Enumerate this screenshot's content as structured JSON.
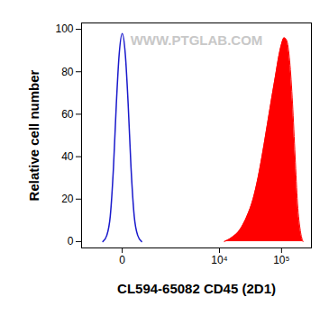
{
  "chart_data": {
    "type": "histogram",
    "x_label": "CL594-65082 CD45 (2D1)",
    "y_label": "Relative cell number",
    "annotations": [
      {
        "text": "WWW.PTGLAB.COM"
      }
    ],
    "log": "x",
    "xlim": [
      -1000,
      300000
    ],
    "xticks": [
      0,
      {
        "value": 10000,
        "label": "10⁴"
      },
      {
        "value": 100000,
        "label": "10⁵"
      }
    ],
    "ylim": [
      -3,
      103
    ],
    "yticks": [
      0,
      20,
      40,
      60,
      80,
      100
    ],
    "series": [
      {
        "type": "line",
        "color": "#1a1acc",
        "x": [
          -300,
          -220,
          -160,
          -110,
          -70,
          -35,
          0,
          35,
          70,
          110,
          160,
          220,
          300
        ],
        "values": [
          0,
          3,
          12,
          35,
          65,
          88,
          98,
          88,
          65,
          35,
          12,
          3,
          0
        ]
      },
      {
        "type": "area",
        "color": "#ff0000",
        "x": [
          12000,
          16000,
          22000,
          28000,
          35000,
          42000,
          50000,
          60000,
          70000,
          80000,
          90000,
          100000,
          110000,
          120000,
          135000,
          150000,
          165000,
          180000,
          200000,
          220000
        ],
        "values": [
          0,
          2,
          6,
          12,
          20,
          30,
          42,
          56,
          68,
          78,
          87,
          93,
          96,
          95,
          85,
          65,
          40,
          18,
          5,
          0
        ]
      }
    ]
  }
}
